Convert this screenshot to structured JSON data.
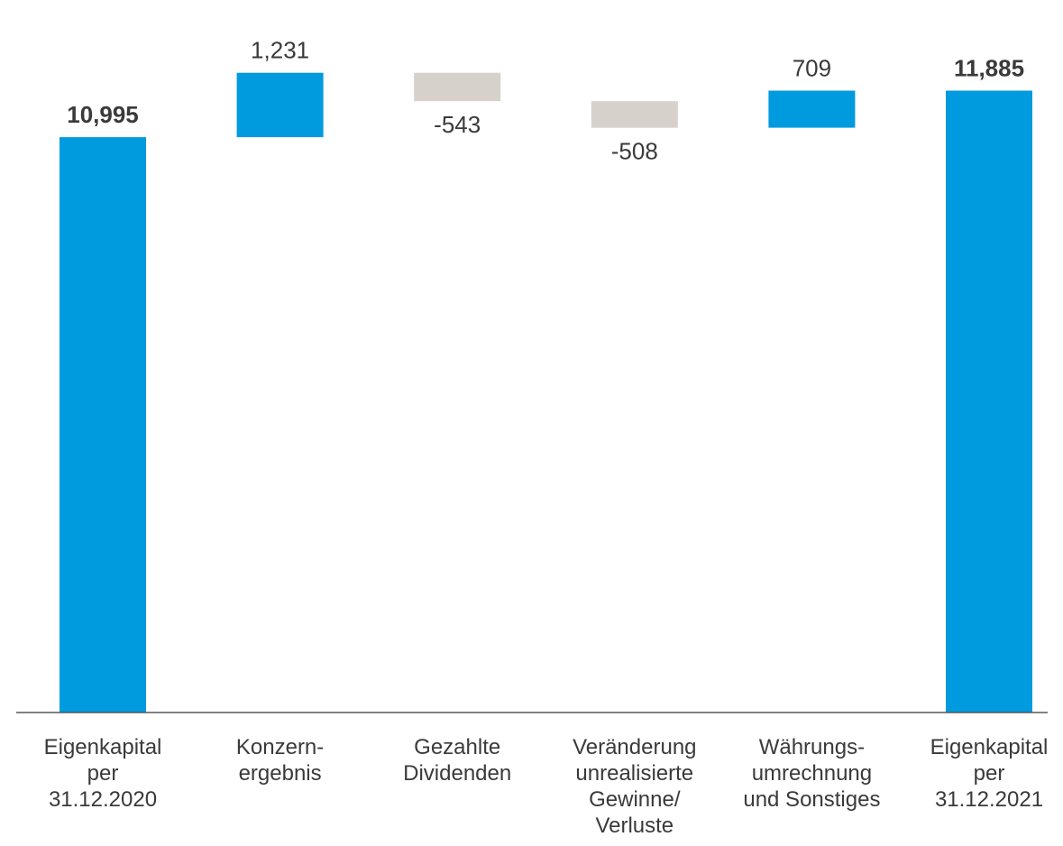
{
  "chart_data": {
    "type": "waterfall",
    "categories": [
      [
        "Eigenkapital",
        "per",
        "31.12.2020"
      ],
      [
        "Konzern-",
        "ergebnis"
      ],
      [
        "Gezahlte",
        "Dividenden"
      ],
      [
        "Veränderung",
        "unrealisierte",
        "Gewinne/",
        "Verluste"
      ],
      [
        "Währungs-",
        "umrechnung",
        "und Sonstiges"
      ],
      [
        "Eigenkapital",
        "per",
        "31.12.2021"
      ]
    ],
    "steps": [
      {
        "kind": "total",
        "value": 10995,
        "label": "10,995"
      },
      {
        "kind": "delta",
        "value": 1231,
        "label": "1,231"
      },
      {
        "kind": "delta",
        "value": -543,
        "label": "-543"
      },
      {
        "kind": "delta",
        "value": -508,
        "label": "-508"
      },
      {
        "kind": "delta",
        "value": 709,
        "label": "709"
      },
      {
        "kind": "total",
        "value": 11885,
        "label": "11,885"
      }
    ],
    "ylim": [
      0,
      13100
    ],
    "colors": {
      "total": "#009ADE",
      "increase": "#009ADE",
      "decrease": "#D6D2CB",
      "axis": "#595959",
      "text": "#3A3A3A"
    },
    "title": "",
    "xlabel": "",
    "ylabel": "",
    "grid": false,
    "legend": "none"
  }
}
